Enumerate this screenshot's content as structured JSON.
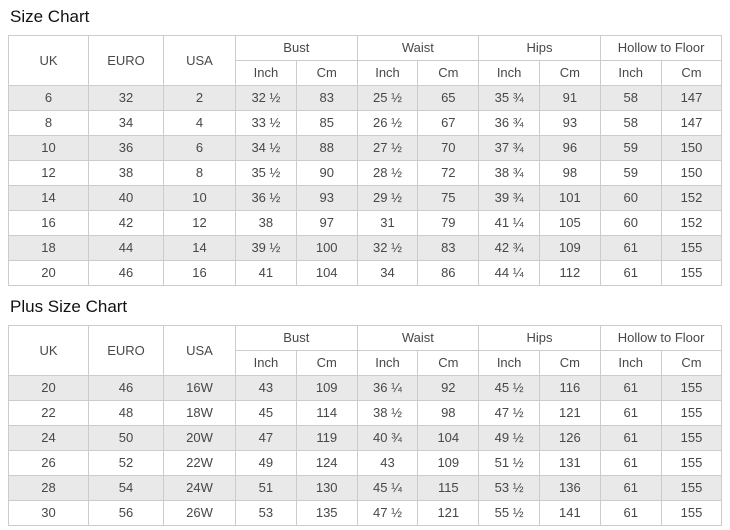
{
  "colors": {
    "row_stripe": "#e9e9e9",
    "table_border": "#cccccc",
    "cell_text": "#484848",
    "title_text": "#111111",
    "background": "#ffffff"
  },
  "size_chart": {
    "title": "Size Chart",
    "columns": {
      "uk": "UK",
      "euro": "EURO",
      "usa": "USA",
      "bust": "Bust",
      "waist": "Waist",
      "hips": "Hips",
      "hollow_to_floor": "Hollow to Floor",
      "inch": "Inch",
      "cm": "Cm"
    },
    "rows": [
      [
        "6",
        "32",
        "2",
        "32 ½",
        "83",
        "25 ½",
        "65",
        "35 ¾",
        "91",
        "58",
        "147"
      ],
      [
        "8",
        "34",
        "4",
        "33 ½",
        "85",
        "26 ½",
        "67",
        "36 ¾",
        "93",
        "58",
        "147"
      ],
      [
        "10",
        "36",
        "6",
        "34 ½",
        "88",
        "27 ½",
        "70",
        "37 ¾",
        "96",
        "59",
        "150"
      ],
      [
        "12",
        "38",
        "8",
        "35 ½",
        "90",
        "28 ½",
        "72",
        "38 ¾",
        "98",
        "59",
        "150"
      ],
      [
        "14",
        "40",
        "10",
        "36 ½",
        "93",
        "29 ½",
        "75",
        "39 ¾",
        "101",
        "60",
        "152"
      ],
      [
        "16",
        "42",
        "12",
        "38",
        "97",
        "31",
        "79",
        "41 ¼",
        "105",
        "60",
        "152"
      ],
      [
        "18",
        "44",
        "14",
        "39 ½",
        "100",
        "32 ½",
        "83",
        "42 ¾",
        "109",
        "61",
        "155"
      ],
      [
        "20",
        "46",
        "16",
        "41",
        "104",
        "34",
        "86",
        "44 ¼",
        "112",
        "61",
        "155"
      ]
    ]
  },
  "plus_size_chart": {
    "title": "Plus Size Chart",
    "columns": {
      "uk": "UK",
      "euro": "EURO",
      "usa": "USA",
      "bust": "Bust",
      "waist": "Waist",
      "hips": "Hips",
      "hollow_to_floor": "Hollow to Floor",
      "inch": "Inch",
      "cm": "Cm"
    },
    "rows": [
      [
        "20",
        "46",
        "16W",
        "43",
        "109",
        "36 ¼",
        "92",
        "45 ½",
        "116",
        "61",
        "155"
      ],
      [
        "22",
        "48",
        "18W",
        "45",
        "114",
        "38 ½",
        "98",
        "47 ½",
        "121",
        "61",
        "155"
      ],
      [
        "24",
        "50",
        "20W",
        "47",
        "119",
        "40 ¾",
        "104",
        "49 ½",
        "126",
        "61",
        "155"
      ],
      [
        "26",
        "52",
        "22W",
        "49",
        "124",
        "43",
        "109",
        "51 ½",
        "131",
        "61",
        "155"
      ],
      [
        "28",
        "54",
        "24W",
        "51",
        "130",
        "45 ¼",
        "115",
        "53 ½",
        "136",
        "61",
        "155"
      ],
      [
        "30",
        "56",
        "26W",
        "53",
        "135",
        "47 ½",
        "121",
        "55 ½",
        "141",
        "61",
        "155"
      ]
    ]
  }
}
